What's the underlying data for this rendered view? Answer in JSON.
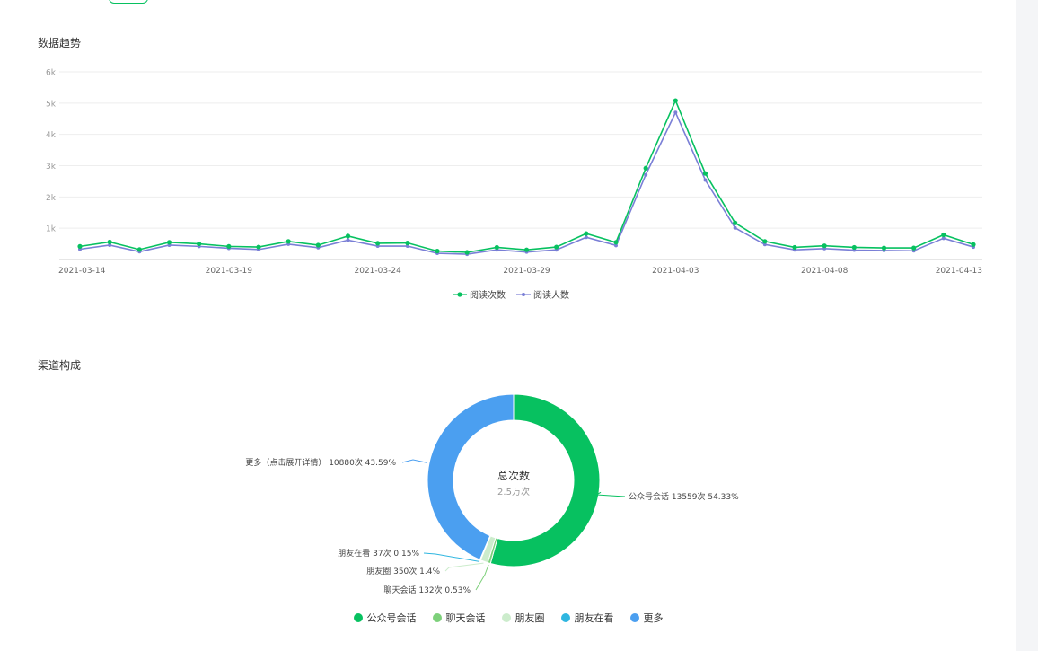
{
  "trend_section": {
    "title": "数据趋势"
  },
  "channel_section": {
    "title": "渠道构成"
  },
  "colors": {
    "reads": "#07c160",
    "readers": "#7a7fd6"
  },
  "chart_data": [
    {
      "type": "line",
      "title": "数据趋势",
      "x_tick_labels": [
        "2021-03-14",
        "2021-03-19",
        "2021-03-24",
        "2021-03-29",
        "2021-04-03",
        "2021-04-08",
        "2021-04-13"
      ],
      "y_tick_labels": [
        "1k",
        "2k",
        "3k",
        "4k",
        "5k",
        "6k"
      ],
      "ylim": [
        0,
        6000
      ],
      "x": [
        "2021-03-14",
        "2021-03-15",
        "2021-03-16",
        "2021-03-17",
        "2021-03-18",
        "2021-03-19",
        "2021-03-20",
        "2021-03-21",
        "2021-03-22",
        "2021-03-23",
        "2021-03-24",
        "2021-03-25",
        "2021-03-26",
        "2021-03-27",
        "2021-03-28",
        "2021-03-29",
        "2021-03-30",
        "2021-03-31",
        "2021-04-01",
        "2021-04-02",
        "2021-04-03",
        "2021-04-04",
        "2021-04-05",
        "2021-04-06",
        "2021-04-07",
        "2021-04-08",
        "2021-04-09",
        "2021-04-10",
        "2021-04-11",
        "2021-04-12",
        "2021-04-13"
      ],
      "series": [
        {
          "name": "阅读次数",
          "color": "#07c160",
          "values": [
            420,
            560,
            320,
            550,
            500,
            420,
            400,
            580,
            460,
            750,
            520,
            530,
            270,
            230,
            390,
            310,
            400,
            830,
            550,
            2920,
            5080,
            2750,
            1170,
            580,
            390,
            440,
            390,
            370,
            370,
            790,
            480
          ]
        },
        {
          "name": "阅读人数",
          "color": "#7a7fd6",
          "values": [
            330,
            460,
            250,
            460,
            420,
            360,
            320,
            490,
            380,
            620,
            430,
            430,
            200,
            170,
            310,
            240,
            310,
            710,
            450,
            2710,
            4700,
            2540,
            1010,
            480,
            310,
            350,
            300,
            290,
            280,
            680,
            400
          ]
        }
      ],
      "grid": true,
      "legend": "bottom-center"
    },
    {
      "type": "pie",
      "subtype": "donut",
      "center_title": "总次数",
      "center_value": "2.5万次",
      "labels": [
        "公众号会话",
        "聊天会话",
        "朋友圈",
        "朋友在看",
        "更多"
      ],
      "values": [
        13559,
        132,
        350,
        37,
        10880
      ],
      "percents": [
        54.33,
        0.53,
        1.4,
        0.15,
        43.59
      ],
      "colors": [
        "#07c160",
        "#7dd07a",
        "#cceccc",
        "#2fb6e0",
        "#4b9ff0"
      ],
      "slice_labels": [
        "公众号会话 13559次 54.33%",
        "聊天会话 132次 0.53%",
        "朋友圈 350次 1.4%",
        "朋友在看 37次 0.15%",
        "更多（点击展开详情） 10880次 43.59%"
      ],
      "legend": "bottom-center"
    }
  ]
}
